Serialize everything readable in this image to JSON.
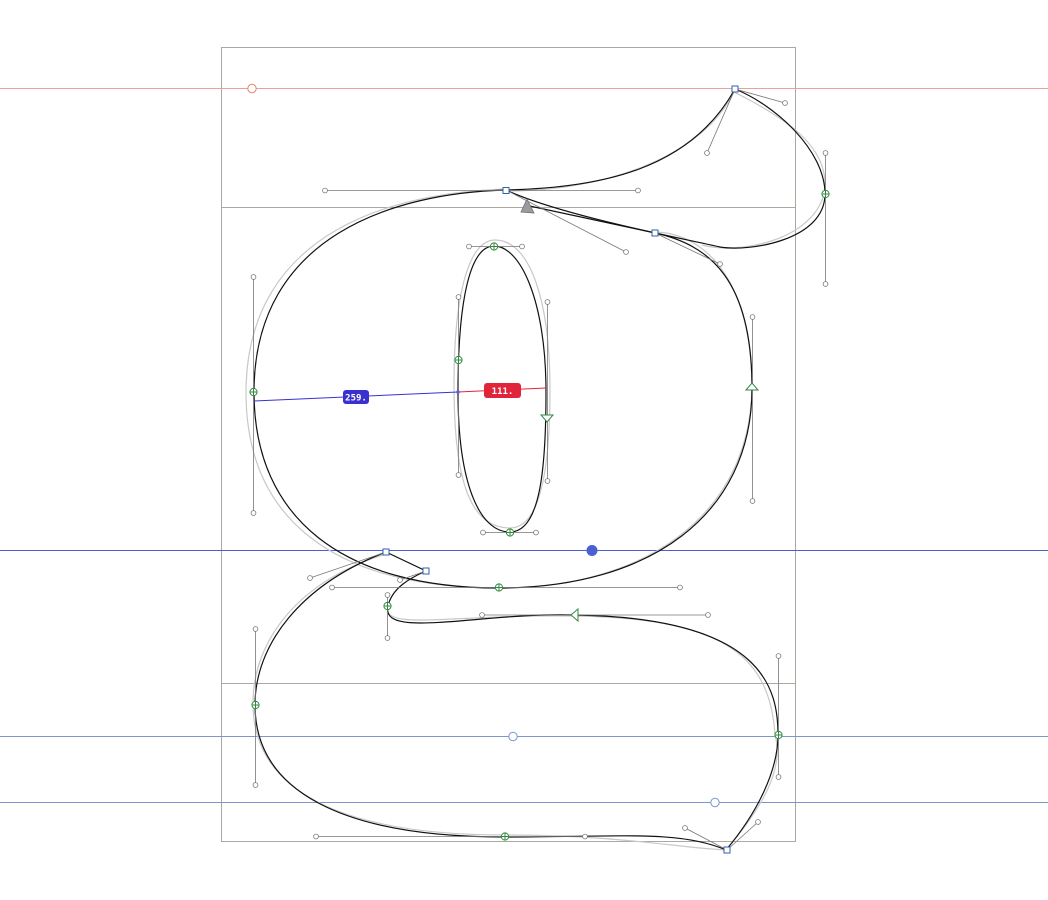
{
  "editor": {
    "colors": {
      "metrics_box": "#a9a9a0",
      "ascender_guide": "#e8a29a",
      "baseline_guide": "#4a5fd0",
      "descender_guide": "#7d96cf",
      "outline": "#111111",
      "background_outline": "#c8c8c8",
      "handle": "#777777",
      "smooth_node": "#2f8a3f",
      "corner_node": "#3060b0",
      "measure_blue": "#3a30d0",
      "measure_red": "#e0253a"
    },
    "icons": {
      "smooth_node": "circle-with-cross-icon",
      "corner_node": "square-node-icon",
      "tangent_node": "triangle-node-icon",
      "guide_anchor": "hollow-circle-icon",
      "selected_anchor": "filled-circle-icon"
    }
  },
  "measurement": {
    "stem_label": "259.",
    "counter_label": "111."
  }
}
